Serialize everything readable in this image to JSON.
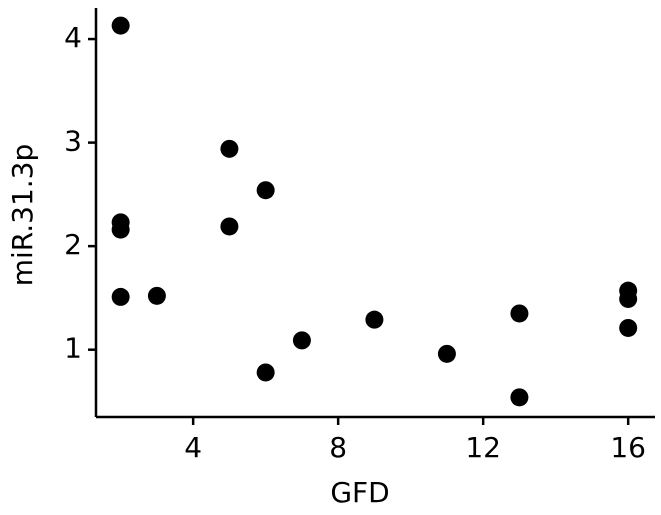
{
  "chart_data": {
    "type": "scatter",
    "x_label": "GFD",
    "y_label": "miR.31.3p",
    "x": [
      2,
      2,
      2,
      2,
      3,
      5,
      5,
      6,
      6,
      7,
      9,
      11,
      13,
      13,
      16,
      16,
      16
    ],
    "values": [
      4.13,
      2.23,
      2.16,
      1.51,
      1.52,
      2.94,
      2.19,
      2.54,
      0.78,
      1.09,
      1.29,
      0.96,
      1.35,
      0.54,
      1.57,
      1.49,
      1.21
    ],
    "color": "#000000",
    "xlim": [
      1.32,
      16.74
    ],
    "ylim": [
      0.35,
      4.3
    ],
    "xticks": [
      4,
      8,
      12,
      16
    ],
    "yticks": [
      1,
      2,
      3,
      4
    ]
  }
}
